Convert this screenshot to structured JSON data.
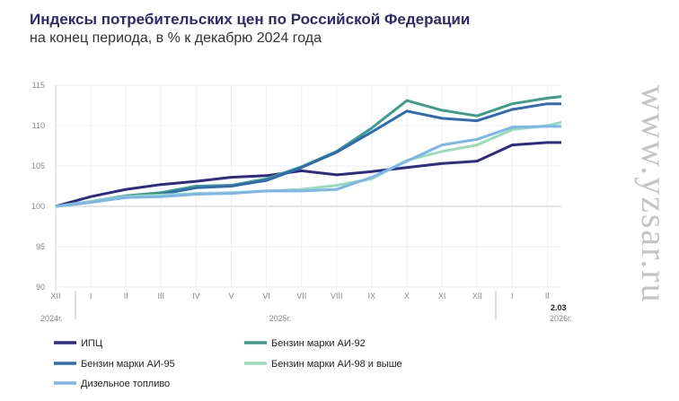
{
  "chart_data": {
    "type": "line",
    "title": "Индексы потребительских цен по Российской Федерации",
    "subtitle": "на конец периода, в % к декабрю 2024 года",
    "categories": [
      "XII",
      "I",
      "II",
      "III",
      "IV",
      "V",
      "VI",
      "VII",
      "VIII",
      "IX",
      "X",
      "XI",
      "XII",
      "I",
      "II",
      "2.03"
    ],
    "year_labels": [
      "2024г.",
      "2025г.",
      "2026г."
    ],
    "ylim": [
      90,
      115
    ],
    "yticks": [
      90,
      95,
      100,
      105,
      110,
      115
    ],
    "grid": true,
    "legend_position": "bottom",
    "series": [
      {
        "name": "ИПЦ",
        "color": "#2e2a86",
        "values": [
          100,
          101.2,
          102.1,
          102.7,
          103.1,
          103.6,
          103.8,
          104.4,
          103.9,
          104.3,
          104.8,
          105.3,
          105.6,
          107.6,
          107.9,
          107.9
        ]
      },
      {
        "name": "Бензин марки АИ-92",
        "color": "#3a9e88",
        "values": [
          100,
          100.6,
          101.3,
          101.7,
          102.5,
          102.6,
          103.4,
          104.9,
          106.8,
          109.7,
          113.1,
          111.9,
          111.2,
          112.7,
          113.4,
          113.6
        ]
      },
      {
        "name": "Бензин марки АИ-95",
        "color": "#2f6bb5",
        "values": [
          100,
          100.5,
          101.1,
          101.5,
          102.3,
          102.5,
          103.2,
          104.8,
          106.7,
          109.2,
          111.8,
          110.9,
          110.6,
          112.0,
          112.7,
          112.7
        ]
      },
      {
        "name": "Бензин марки АИ-98 и выше",
        "color": "#98dcb8",
        "values": [
          100,
          100.6,
          101.2,
          101.4,
          101.6,
          101.7,
          101.9,
          102.1,
          102.6,
          103.4,
          105.7,
          106.8,
          107.6,
          109.5,
          110.0,
          110.4
        ]
      },
      {
        "name": "Дизельное топливо",
        "color": "#7bb6ec",
        "values": [
          100,
          100.5,
          101.1,
          101.2,
          101.5,
          101.6,
          101.9,
          101.9,
          102.1,
          103.6,
          105.6,
          107.6,
          108.3,
          109.8,
          109.9,
          109.9
        ]
      }
    ]
  },
  "watermark": "www.yzsar.ru"
}
